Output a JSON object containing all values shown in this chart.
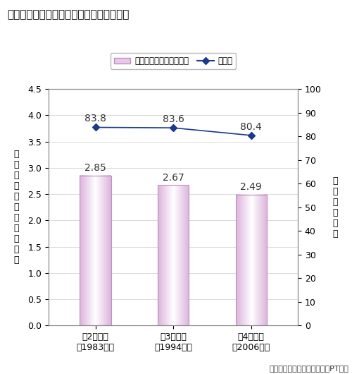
{
  "title": "』一人あたりトリップ数、外出率の変化』",
  "title_prefix": "【",
  "title_suffix": "】",
  "title_inner": "一人あたりトリップ数、外出率の変化",
  "categories": [
    "第2回調査\n（1983年）",
    "第3回調査\n（1994年）",
    "第4回調査\n（2006年）"
  ],
  "bar_values": [
    2.85,
    2.67,
    2.49
  ],
  "line_values": [
    83.8,
    83.6,
    80.4
  ],
  "bar_edge_color": "#c090c0",
  "line_color": "#1a3a8c",
  "ylim_left": [
    0,
    4.5
  ],
  "ylim_right": [
    0,
    100
  ],
  "yticks_left": [
    0.0,
    0.5,
    1.0,
    1.5,
    2.0,
    2.5,
    3.0,
    3.5,
    4.0,
    4.5
  ],
  "yticks_right": [
    0,
    10,
    20,
    30,
    40,
    50,
    60,
    70,
    80,
    90,
    100
  ],
  "ylabel_left": "一\n人\nあ\nた\nり\nの\nト\nリ\nッ\nプ\n数",
  "ylabel_right": "外\n出\n率\n（\n％\n）",
  "legend_bar_label": "一人あたりのトリップ数",
  "legend_line_label": "外出率",
  "source_text": "資料：第２～４回道央都市圈PT調査",
  "bar_width": 0.4,
  "bg_color": "#ffffff",
  "annotation_fontsize": 10,
  "tick_fontsize": 9,
  "label_fontsize": 9
}
